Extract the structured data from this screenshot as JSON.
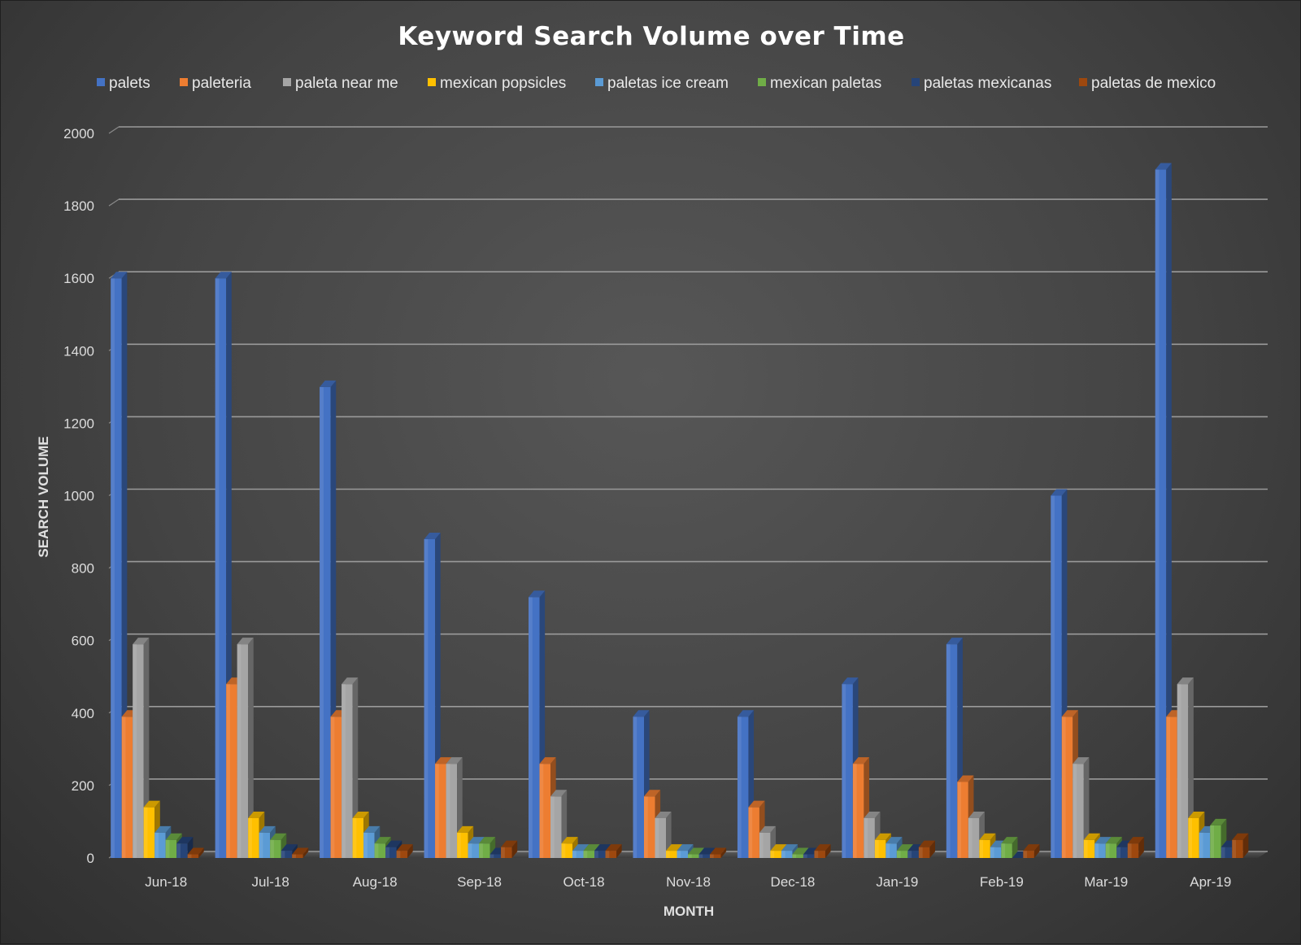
{
  "chart_data": {
    "type": "bar",
    "title": "Keyword Search Volume over Time",
    "xlabel": "MONTH",
    "ylabel": "SEARCH VOLUME",
    "ylim": [
      0,
      2000
    ],
    "yticks": [
      0,
      200,
      400,
      600,
      800,
      1000,
      1200,
      1400,
      1600,
      1800,
      2000
    ],
    "grid": true,
    "legend_position": "top",
    "categories": [
      "Jun-18",
      "Jul-18",
      "Aug-18",
      "Sep-18",
      "Oct-18",
      "Nov-18",
      "Dec-18",
      "Jan-19",
      "Feb-19",
      "Mar-19",
      "Apr-19"
    ],
    "series": [
      {
        "name": "palets",
        "color": "#4472C4",
        "values": [
          1600,
          1600,
          1300,
          880,
          720,
          390,
          390,
          480,
          590,
          1000,
          1900
        ]
      },
      {
        "name": "paleteria",
        "color": "#ED7D31",
        "values": [
          390,
          480,
          390,
          260,
          260,
          170,
          140,
          260,
          210,
          390,
          390
        ]
      },
      {
        "name": "paleta near me",
        "color": "#A5A5A5",
        "values": [
          590,
          590,
          480,
          260,
          170,
          110,
          70,
          110,
          110,
          260,
          480
        ]
      },
      {
        "name": "mexican popsicles",
        "color": "#FFC000",
        "values": [
          140,
          110,
          110,
          70,
          40,
          20,
          20,
          50,
          50,
          50,
          110
        ]
      },
      {
        "name": "paletas ice cream",
        "color": "#5B9BD5",
        "values": [
          70,
          70,
          70,
          40,
          20,
          20,
          20,
          40,
          30,
          40,
          70
        ]
      },
      {
        "name": "mexican paletas",
        "color": "#70AD47",
        "values": [
          50,
          50,
          40,
          40,
          20,
          10,
          10,
          20,
          40,
          40,
          90
        ]
      },
      {
        "name": "paletas mexicanas",
        "color": "#264478",
        "values": [
          40,
          20,
          30,
          10,
          20,
          10,
          10,
          20,
          0,
          30,
          30
        ]
      },
      {
        "name": "paletas de mexico",
        "color": "#9E480E",
        "values": [
          10,
          10,
          20,
          30,
          20,
          10,
          20,
          30,
          20,
          40,
          50
        ]
      }
    ]
  }
}
